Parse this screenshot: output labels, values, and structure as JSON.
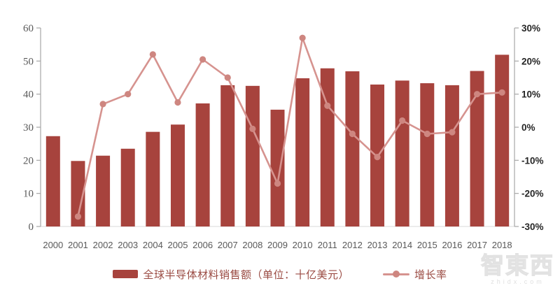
{
  "colors": {
    "bar": "#a7433d",
    "line": "#d6938f",
    "marker": "#ce8680",
    "axis_line": "#a6a6a6",
    "x_axis_line": "#d9d9d9",
    "left_label": "#595959",
    "right_label": "#262626",
    "year_label": "#595959",
    "legend_text": "#9a4a42"
  },
  "legend": {
    "bar_label": "全球半导体材料销售额（单位：十亿美元）",
    "line_label": "增长率"
  },
  "watermark": {
    "logo": "智東西",
    "domain": "zhidx.com"
  },
  "chart_data": {
    "type": "bar",
    "subtype": "bar+line combo",
    "title": "",
    "xlabel": "",
    "ylabel": "",
    "grid": false,
    "legend_position": "bottom",
    "categories": [
      "2000",
      "2001",
      "2002",
      "2003",
      "2004",
      "2005",
      "2006",
      "2007",
      "2008",
      "2009",
      "2010",
      "2011",
      "2012",
      "2013",
      "2014",
      "2015",
      "2016",
      "2017",
      "2018"
    ],
    "series": [
      {
        "name": "全球半导体材料销售额（单位：十亿美元）",
        "type": "bar",
        "axis": "left",
        "values": [
          27.3,
          19.8,
          21.4,
          23.5,
          28.6,
          30.8,
          37.2,
          42.7,
          42.5,
          35.3,
          44.8,
          47.8,
          46.9,
          42.9,
          44.1,
          43.3,
          42.7,
          47.0,
          51.9
        ]
      },
      {
        "name": "增长率",
        "type": "line",
        "axis": "right",
        "values": [
          null,
          -27,
          7,
          10,
          22,
          7.5,
          20.5,
          15,
          -0.5,
          -17,
          27,
          6.5,
          -2,
          -9,
          2,
          -2,
          -1.5,
          10,
          10.5
        ]
      }
    ],
    "left_axis": {
      "min": 0,
      "max": 60,
      "step": 10,
      "tick_labels": [
        "0",
        "10",
        "20",
        "30",
        "40",
        "50",
        "60"
      ]
    },
    "right_axis": {
      "min": -30,
      "max": 30,
      "step": 10,
      "tick_labels": [
        "-30%",
        "-20%",
        "-10%",
        "0%",
        "10%",
        "20%",
        "30%"
      ]
    }
  }
}
